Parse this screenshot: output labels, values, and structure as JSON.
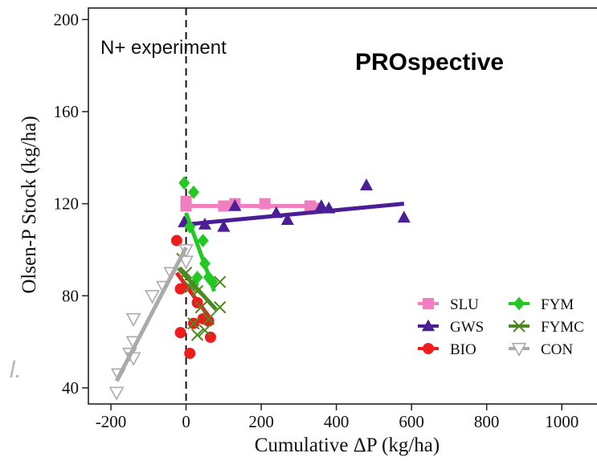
{
  "chart_data": {
    "type": "scatter",
    "xlabel": "Cumulative ΔP (kg/ha)",
    "ylabel": "Olsen-P Stock (kg/ha)",
    "xlim": [
      -260,
      1130
    ],
    "ylim": [
      33,
      205
    ],
    "x_ticks": [
      -200,
      0,
      200,
      400,
      600,
      800,
      1000
    ],
    "y_ticks": [
      40,
      80,
      120,
      160,
      200
    ],
    "grid": false,
    "legend_position": "bottom-right",
    "annotations": {
      "experiment": "N+ experiment",
      "title_right": "PROspective",
      "left_fragment": "l."
    },
    "vline_x": 0,
    "series": [
      {
        "name": "SLU",
        "color": "#f07fbf",
        "marker": "square",
        "points": [
          [
            0,
            121
          ],
          [
            0,
            119
          ],
          [
            100,
            119
          ],
          [
            130,
            120
          ],
          [
            210,
            120
          ],
          [
            330,
            119
          ],
          [
            340,
            118
          ]
        ],
        "fit": [
          [
            0,
            119
          ],
          [
            340,
            119
          ]
        ]
      },
      {
        "name": "GWS",
        "color": "#4b1e96",
        "marker": "triangle-up",
        "points": [
          [
            -5,
            112
          ],
          [
            50,
            111
          ],
          [
            100,
            110
          ],
          [
            130,
            119
          ],
          [
            240,
            116
          ],
          [
            270,
            113
          ],
          [
            360,
            119
          ],
          [
            380,
            118
          ],
          [
            480,
            128
          ],
          [
            580,
            114
          ]
        ],
        "fit": [
          [
            0,
            111
          ],
          [
            580,
            120
          ]
        ]
      },
      {
        "name": "BIO",
        "color": "#ee1c1c",
        "marker": "circle",
        "points": [
          [
            -25,
            104
          ],
          [
            -15,
            83
          ],
          [
            -15,
            64
          ],
          [
            10,
            55
          ],
          [
            20,
            68
          ],
          [
            30,
            77
          ],
          [
            45,
            70
          ],
          [
            60,
            69
          ],
          [
            65,
            62
          ]
        ],
        "fit": [
          [
            -25,
            90
          ],
          [
            65,
            70
          ]
        ]
      },
      {
        "name": "FYM",
        "color": "#22c922",
        "marker": "diamond",
        "points": [
          [
            -5,
            129
          ],
          [
            20,
            125
          ],
          [
            10,
            110
          ],
          [
            45,
            104
          ],
          [
            50,
            94
          ],
          [
            60,
            88
          ],
          [
            30,
            88
          ],
          [
            20,
            85
          ],
          [
            70,
            86
          ]
        ],
        "fit": [
          [
            0,
            116
          ],
          [
            75,
            82
          ]
        ]
      },
      {
        "name": "FYMC",
        "color": "#4a8a1e",
        "marker": "x",
        "points": [
          [
            -10,
            96
          ],
          [
            0,
            90
          ],
          [
            10,
            84
          ],
          [
            30,
            82
          ],
          [
            40,
            75
          ],
          [
            60,
            70
          ],
          [
            20,
            68
          ],
          [
            30,
            63
          ],
          [
            90,
            86
          ],
          [
            90,
            75
          ],
          [
            50,
            65
          ]
        ],
        "fit": [
          [
            -20,
            92
          ],
          [
            80,
            74
          ]
        ]
      },
      {
        "name": "CON",
        "color": "#aaaaaa",
        "marker": "triangle-down",
        "points": [
          [
            -185,
            38
          ],
          [
            -180,
            46
          ],
          [
            -150,
            55
          ],
          [
            -140,
            53
          ],
          [
            -140,
            60
          ],
          [
            -140,
            70
          ],
          [
            -90,
            80
          ],
          [
            -60,
            84
          ],
          [
            -40,
            90
          ],
          [
            0,
            95
          ],
          [
            0,
            100
          ]
        ],
        "fit": [
          [
            -185,
            43
          ],
          [
            0,
            101
          ]
        ]
      }
    ]
  }
}
